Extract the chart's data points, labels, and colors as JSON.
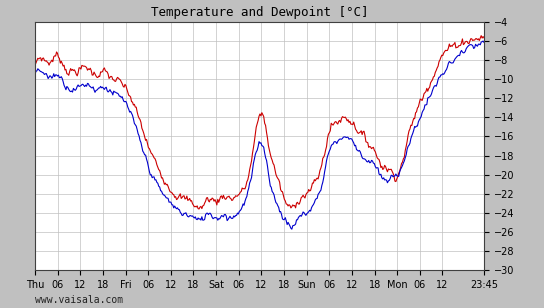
{
  "title": "Temperature and Dewpoint [°C]",
  "background_color": "#c0c0c0",
  "plot_bg_color": "#ffffff",
  "temp_color": "#cc0000",
  "dewp_color": "#0000cc",
  "grid_color": "#c0c0c0",
  "ylim": [
    -30,
    -4
  ],
  "yticks": [
    -30,
    -28,
    -26,
    -24,
    -22,
    -20,
    -18,
    -16,
    -14,
    -12,
    -10,
    -8,
    -6,
    -4
  ],
  "line_width": 0.8,
  "watermark": "www.vaisala.com",
  "x_tick_labels": [
    "Thu",
    "06",
    "12",
    "18",
    "Fri",
    "06",
    "12",
    "18",
    "Sat",
    "06",
    "12",
    "18",
    "Sun",
    "06",
    "12",
    "18",
    "Mon",
    "06",
    "12",
    "23:45"
  ],
  "x_tick_positions": [
    0,
    6,
    12,
    18,
    24,
    30,
    36,
    42,
    48,
    54,
    60,
    66,
    72,
    78,
    84,
    90,
    96,
    102,
    108,
    119
  ],
  "temp_control_t": [
    0,
    2,
    4,
    6,
    8,
    10,
    12,
    14,
    16,
    18,
    20,
    22,
    24,
    27,
    30,
    33,
    36,
    39,
    42,
    44,
    46,
    48,
    50,
    52,
    54,
    56,
    58,
    60,
    62,
    64,
    66,
    68,
    70,
    72,
    74,
    76,
    78,
    80,
    82,
    84,
    86,
    88,
    90,
    92,
    94,
    96,
    99,
    102,
    105,
    108,
    111,
    114,
    117,
    119
  ],
  "temp_control_v": [
    -8.5,
    -7.8,
    -8.2,
    -7.5,
    -8.8,
    -9.2,
    -9.0,
    -8.8,
    -9.5,
    -9.2,
    -9.8,
    -10.2,
    -11.0,
    -13.5,
    -17.0,
    -19.5,
    -21.5,
    -22.5,
    -23.0,
    -23.5,
    -22.5,
    -22.8,
    -22.2,
    -22.5,
    -22.0,
    -21.0,
    -17.0,
    -13.5,
    -17.0,
    -20.0,
    -22.5,
    -23.5,
    -22.5,
    -22.0,
    -21.0,
    -19.0,
    -15.5,
    -14.5,
    -14.0,
    -14.5,
    -15.5,
    -16.5,
    -17.5,
    -19.0,
    -19.5,
    -20.0,
    -16.0,
    -12.5,
    -10.0,
    -7.5,
    -6.5,
    -6.0,
    -5.8,
    -5.5
  ],
  "dewp_control_t": [
    0,
    2,
    4,
    6,
    8,
    10,
    12,
    14,
    16,
    18,
    20,
    22,
    24,
    27,
    30,
    33,
    36,
    39,
    42,
    44,
    46,
    48,
    50,
    52,
    54,
    56,
    58,
    60,
    62,
    64,
    66,
    68,
    70,
    72,
    74,
    76,
    78,
    80,
    82,
    84,
    86,
    88,
    90,
    92,
    94,
    96,
    99,
    102,
    105,
    108,
    111,
    114,
    117,
    119
  ],
  "dewp_control_v": [
    -9.5,
    -9.2,
    -9.8,
    -9.5,
    -10.5,
    -11.0,
    -10.8,
    -10.5,
    -11.0,
    -10.8,
    -11.2,
    -11.8,
    -12.5,
    -15.5,
    -19.0,
    -21.5,
    -23.0,
    -24.0,
    -24.5,
    -24.8,
    -24.0,
    -24.5,
    -24.2,
    -24.5,
    -23.8,
    -22.5,
    -19.0,
    -16.5,
    -20.0,
    -23.0,
    -24.5,
    -25.5,
    -24.5,
    -24.0,
    -23.0,
    -21.0,
    -17.5,
    -16.5,
    -16.0,
    -16.5,
    -17.5,
    -18.5,
    -19.0,
    -20.5,
    -20.5,
    -20.0,
    -17.0,
    -14.0,
    -11.5,
    -9.5,
    -8.0,
    -7.0,
    -6.5,
    -6.2
  ]
}
